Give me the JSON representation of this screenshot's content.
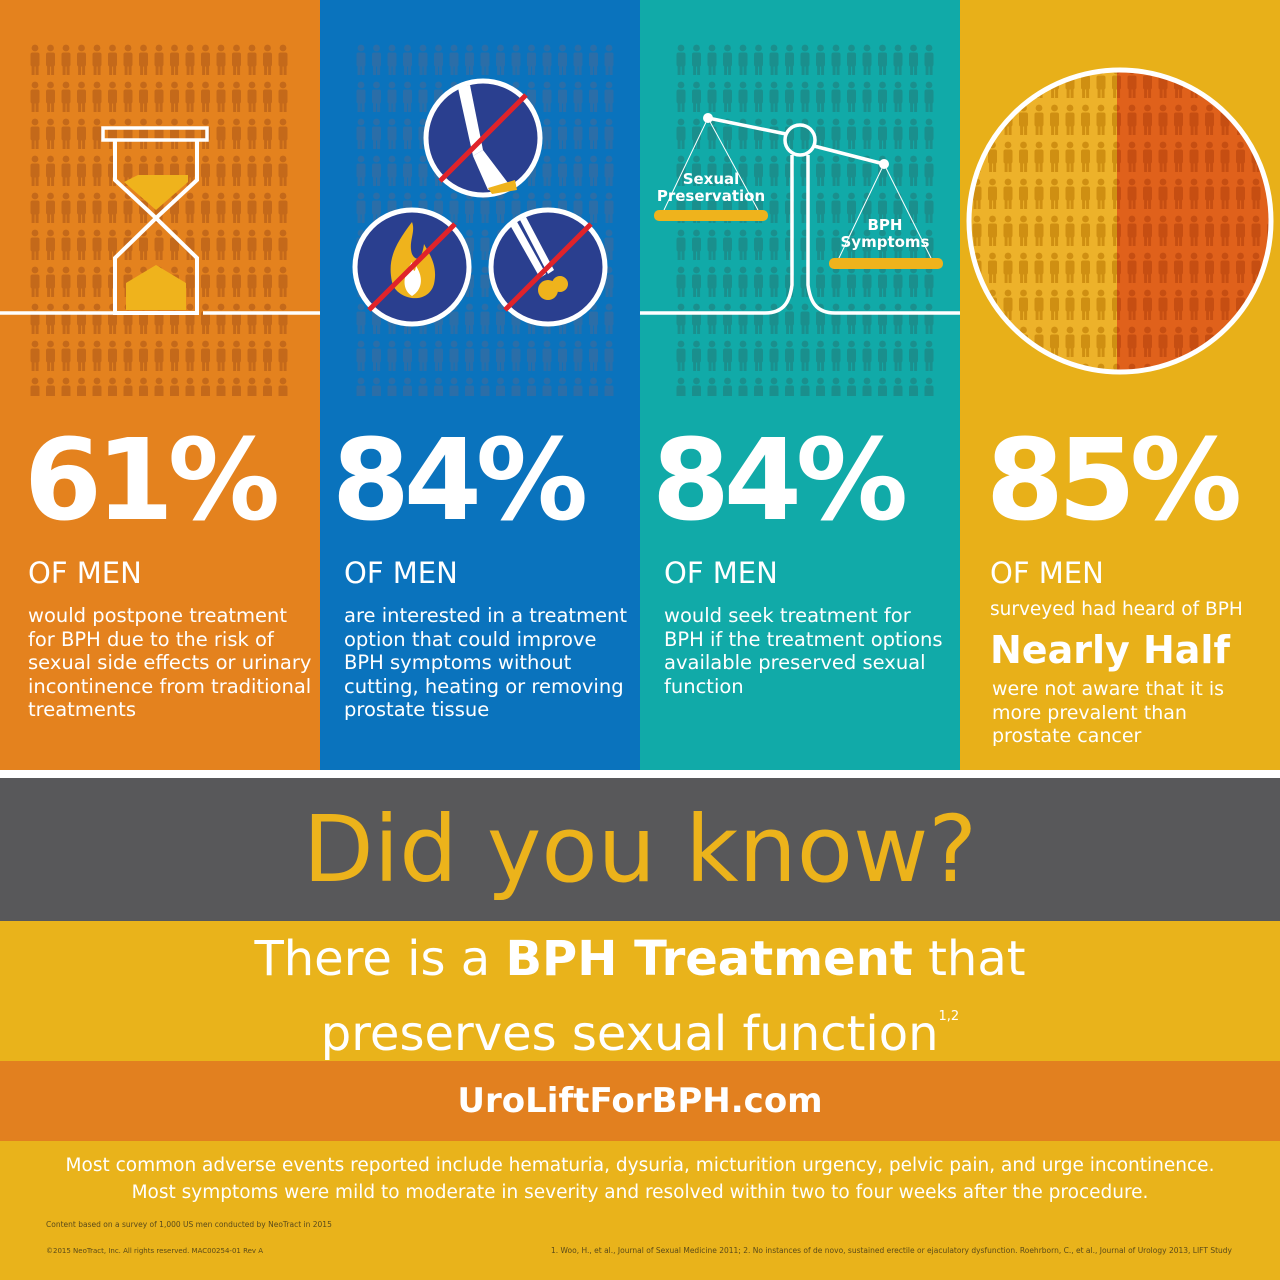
{
  "panels": [
    {
      "stat": "61%",
      "of_men": "OF MEN",
      "description": "would postpone treatment for BPH due to the risk of sexual side effects or urinary incontinence from traditional treatments",
      "icon": "hourglass-icon",
      "color": "#e4821e"
    },
    {
      "stat": "84%",
      "of_men": "OF MEN",
      "description": "are interested in a treatment option that could improve BPH symptoms without cutting, heating or removing prostate tissue",
      "icon": "no-cutting-heating-removing-icons",
      "color": "#0a73bd"
    },
    {
      "stat": "84%",
      "of_men": "OF MEN",
      "description": "would seek treatment for BPH if the treatment options available preserved sexual function",
      "icon": "balance-scale-icon",
      "color": "#11aaa8",
      "scale_left": "Sexual Preservation",
      "scale_right": "BPH Symptoms"
    },
    {
      "stat": "85%",
      "of_men": "OF MEN",
      "description": "surveyed had heard of BPH",
      "highlight": "Nearly Half",
      "description2": "were not aware that it is more prevalent than prostate cancer",
      "icon": "magnifier-circle-icon",
      "color": "#e8b019"
    }
  ],
  "headline": "Did you know?",
  "tagline": {
    "pre": "There is a ",
    "bold": "BPH Treatment",
    "post": " that",
    "line2": "preserves sexual function",
    "sup": "1,2"
  },
  "url": "UroLiftForBPH.com",
  "adverse_line1": "Most common adverse events reported include hematuria, dysuria, micturition urgency, pelvic pain, and urge incontinence.",
  "adverse_line2": "Most symptoms were mild to moderate in severity and resolved within two to four weeks after the procedure.",
  "survey_note": "Content based on a survey of 1,000 US men conducted by NeoTract in 2015",
  "copyright": "©2015 NeoTract, Inc. All rights reserved. MAC00254-01 Rev A",
  "references": "1. Woo, H., et al., Journal of Sexual Medicine 2011; 2. No instances of de novo, sustained erectile or ejaculatory dysfunction. Roehrborn, C., et al., Journal of Urology 2013, LIFT Study",
  "colors": {
    "orange": "#e4821e",
    "blue": "#0a73bd",
    "teal": "#11aaa8",
    "yellow": "#e8b019",
    "grey": "#58585a"
  }
}
